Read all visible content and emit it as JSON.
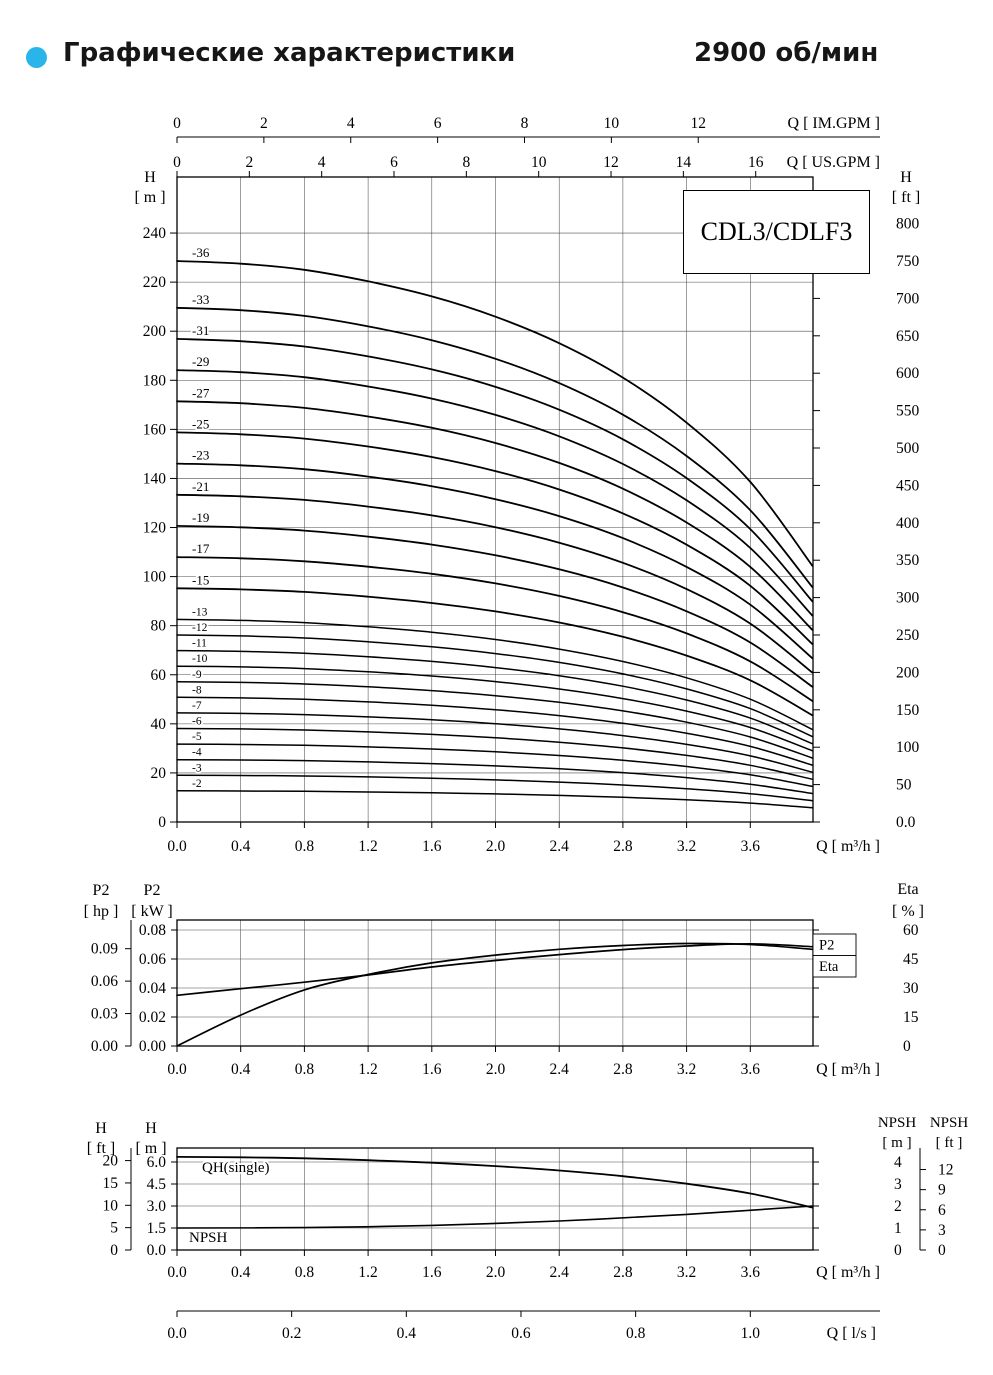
{
  "header": {
    "title": "Графические характеристики",
    "rpm": "2900 об/мин",
    "bullet_color": "#29b5e9"
  },
  "model": "CDL3/CDLF3",
  "colors": {
    "curve": "#000000",
    "grid": "#4d4d4d",
    "axis": "#000000"
  },
  "chart_data": [
    {
      "id": "qh-multistage",
      "type": "line",
      "title": "CDL3/CDLF3",
      "x_axis_label": "Q [ m³/h ]",
      "x_ticks": [
        "0.0",
        "0.4",
        "0.8",
        "1.2",
        "1.6",
        "2.0",
        "2.4",
        "2.8",
        "3.2",
        "3.6"
      ],
      "x_range_m3h": [
        0,
        4.0
      ],
      "top_axes": [
        {
          "label": "Q [ IM.GPM ]",
          "ticks": [
            0,
            2,
            4,
            6,
            8,
            10,
            12
          ],
          "unit_in_m3h": 0.27276
        },
        {
          "label": "Q [ US.GPM ]",
          "ticks": [
            0,
            2,
            4,
            6,
            8,
            10,
            12,
            14,
            16
          ],
          "unit_in_m3h": 0.22712
        }
      ],
      "y_left": {
        "name": "H",
        "unit": "[ m ]",
        "ticks": [
          0,
          20,
          40,
          60,
          80,
          100,
          120,
          140,
          160,
          180,
          200,
          220,
          240
        ],
        "max": 262
      },
      "y_right": {
        "name": "H",
        "unit": "[ ft ]",
        "ticks": [
          "0.0",
          "50",
          "100",
          "150",
          "200",
          "250",
          "300",
          "350",
          "400",
          "450",
          "500",
          "550",
          "600",
          "650",
          "700",
          "750",
          "800"
        ]
      },
      "stages": [
        2,
        3,
        4,
        5,
        6,
        7,
        8,
        9,
        10,
        11,
        12,
        13,
        15,
        17,
        19,
        21,
        23,
        25,
        27,
        29,
        31,
        33,
        36
      ],
      "single_stage_head_m": [
        [
          0,
          6.35
        ],
        [
          0.4,
          6.32
        ],
        [
          0.8,
          6.25
        ],
        [
          1.2,
          6.12
        ],
        [
          1.6,
          5.95
        ],
        [
          2.0,
          5.72
        ],
        [
          2.4,
          5.42
        ],
        [
          2.8,
          5.03
        ],
        [
          3.2,
          4.52
        ],
        [
          3.6,
          3.85
        ],
        [
          3.99,
          2.9
        ]
      ]
    },
    {
      "id": "power-efficiency",
      "type": "line",
      "x_axis_label": "Q [ m³/h ]",
      "x_ticks": [
        "0.0",
        "0.4",
        "0.8",
        "1.2",
        "1.6",
        "2.0",
        "2.4",
        "2.8",
        "3.2",
        "3.6"
      ],
      "y_left_outer": {
        "name": "P2",
        "unit": "[ hp ]",
        "ticks": [
          "0.00",
          "0.03",
          "0.06",
          "0.09"
        ]
      },
      "y_left_inner": {
        "name": "P2",
        "unit": "[ kW ]",
        "ticks": [
          "0.00",
          "0.02",
          "0.04",
          "0.06",
          "0.08"
        ]
      },
      "y_right": {
        "name": "Eta",
        "unit": "[ % ]",
        "ticks": [
          "0",
          "15",
          "30",
          "45",
          "60"
        ]
      },
      "series": [
        {
          "name": "P2",
          "unit": "kW",
          "points": [
            [
              0,
              0.035
            ],
            [
              0.4,
              0.0395
            ],
            [
              0.8,
              0.044
            ],
            [
              1.2,
              0.049
            ],
            [
              1.6,
              0.0545
            ],
            [
              2.0,
              0.059
            ],
            [
              2.4,
              0.063
            ],
            [
              2.8,
              0.0665
            ],
            [
              3.2,
              0.069
            ],
            [
              3.6,
              0.0705
            ],
            [
              3.99,
              0.0685
            ]
          ]
        },
        {
          "name": "Eta",
          "unit": "%",
          "points": [
            [
              0,
              0
            ],
            [
              0.4,
              16
            ],
            [
              0.8,
              29
            ],
            [
              1.2,
              37
            ],
            [
              1.6,
              43
            ],
            [
              2.0,
              47
            ],
            [
              2.4,
              50
            ],
            [
              2.8,
              52
            ],
            [
              3.2,
              53
            ],
            [
              3.6,
              52.5
            ],
            [
              3.99,
              50
            ]
          ]
        }
      ]
    },
    {
      "id": "qh-single-npsh",
      "type": "line",
      "x_axis_label": "Q [ m³/h ]",
      "x_ticks": [
        "0.0",
        "0.4",
        "0.8",
        "1.2",
        "1.6",
        "2.0",
        "2.4",
        "2.8",
        "3.2",
        "3.6"
      ],
      "y_left_outer": {
        "name": "H",
        "unit": "[ ft ]",
        "ticks": [
          "0",
          "5",
          "10",
          "15",
          "20"
        ]
      },
      "y_left_inner": {
        "name": "H",
        "unit": "[ m ]",
        "ticks": [
          "0.0",
          "1.5",
          "3.0",
          "4.5",
          "6.0"
        ]
      },
      "y_right_inner": {
        "name": "NPSH",
        "unit": "[ m ]",
        "ticks": [
          "0",
          "1",
          "2",
          "3",
          "4"
        ]
      },
      "y_right_outer": {
        "name": "NPSH",
        "unit": "[ ft ]",
        "ticks": [
          "0",
          "3",
          "6",
          "9",
          "12"
        ]
      },
      "series": [
        {
          "name": "QH(single)",
          "unit": "m",
          "points": [
            [
              0,
              6.35
            ],
            [
              0.4,
              6.32
            ],
            [
              0.8,
              6.25
            ],
            [
              1.2,
              6.12
            ],
            [
              1.6,
              5.95
            ],
            [
              2.0,
              5.72
            ],
            [
              2.4,
              5.42
            ],
            [
              2.8,
              5.03
            ],
            [
              3.2,
              4.52
            ],
            [
              3.6,
              3.85
            ],
            [
              3.99,
              2.9
            ]
          ]
        },
        {
          "name": "NPSH",
          "unit": "m",
          "points": [
            [
              0,
              1.0
            ],
            [
              0.8,
              1.02
            ],
            [
              1.6,
              1.12
            ],
            [
              2.4,
              1.32
            ],
            [
              3.2,
              1.62
            ],
            [
              3.99,
              2.0
            ]
          ]
        }
      ],
      "ls_axis": {
        "label": "Q [ l/s ]",
        "ticks": [
          "0.0",
          "0.2",
          "0.4",
          "0.6",
          "0.8",
          "1.0"
        ],
        "m3h_per_unit": 3.6
      }
    }
  ]
}
